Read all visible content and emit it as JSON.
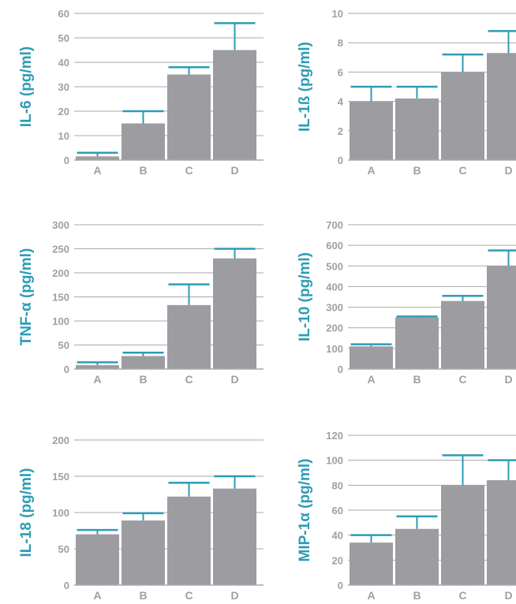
{
  "colors": {
    "bar": "#9d9ca1",
    "error": "#2d9cb5",
    "ylabel": "#2d9cb5",
    "grid": "#a9a9ad",
    "tick": "#a0a0a4"
  },
  "chart_data": [
    {
      "type": "bar",
      "ylabel": "IL-6 (pg/ml)",
      "categories": [
        "A",
        "B",
        "C",
        "D"
      ],
      "values": [
        1.5,
        15,
        35,
        45
      ],
      "error_upper": [
        3,
        20,
        38,
        56
      ],
      "ylim": [
        0,
        60
      ],
      "yticks": [
        0,
        10,
        20,
        30,
        40,
        50,
        60
      ],
      "grid": true
    },
    {
      "type": "bar",
      "ylabel": "IL-1ß (pg/ml)",
      "categories": [
        "A",
        "B",
        "C",
        "D"
      ],
      "values": [
        4,
        4.2,
        6,
        7.3
      ],
      "error_upper": [
        5,
        5,
        7.2,
        8.8
      ],
      "ylim": [
        0,
        10
      ],
      "yticks": [
        0,
        2,
        4,
        6,
        8,
        10
      ],
      "grid": true
    },
    {
      "type": "bar",
      "ylabel": "TNF-α (pg/ml)",
      "categories": [
        "A",
        "B",
        "C",
        "D"
      ],
      "values": [
        8,
        27,
        133,
        230
      ],
      "error_upper": [
        14,
        34,
        176,
        250
      ],
      "ylim": [
        0,
        300
      ],
      "yticks": [
        0,
        50,
        100,
        150,
        200,
        250,
        300
      ],
      "grid": true
    },
    {
      "type": "bar",
      "ylabel": "IL-10 (pg/ml)",
      "categories": [
        "A",
        "B",
        "C",
        "D"
      ],
      "values": [
        110,
        250,
        330,
        500
      ],
      "error_upper": [
        120,
        255,
        355,
        575
      ],
      "ylim": [
        0,
        700
      ],
      "yticks": [
        0,
        100,
        200,
        300,
        400,
        500,
        600,
        700
      ],
      "grid": true
    },
    {
      "type": "bar",
      "ylabel": "IL-18 (pg/ml)",
      "categories": [
        "A",
        "B",
        "C",
        "D"
      ],
      "values": [
        70,
        89,
        122,
        133
      ],
      "error_upper": [
        76,
        99,
        141,
        150
      ],
      "ylim": [
        0,
        200
      ],
      "yticks": [
        0,
        50,
        100,
        150,
        200
      ],
      "grid": true
    },
    {
      "type": "bar",
      "ylabel": "MIP-1α (pg/ml)",
      "categories": [
        "A",
        "B",
        "C",
        "D"
      ],
      "values": [
        34,
        45,
        80,
        84
      ],
      "error_upper": [
        40,
        55,
        104,
        100
      ],
      "ylim": [
        0,
        120
      ],
      "yticks": [
        0,
        20,
        40,
        60,
        80,
        100,
        120
      ],
      "grid": true
    }
  ]
}
